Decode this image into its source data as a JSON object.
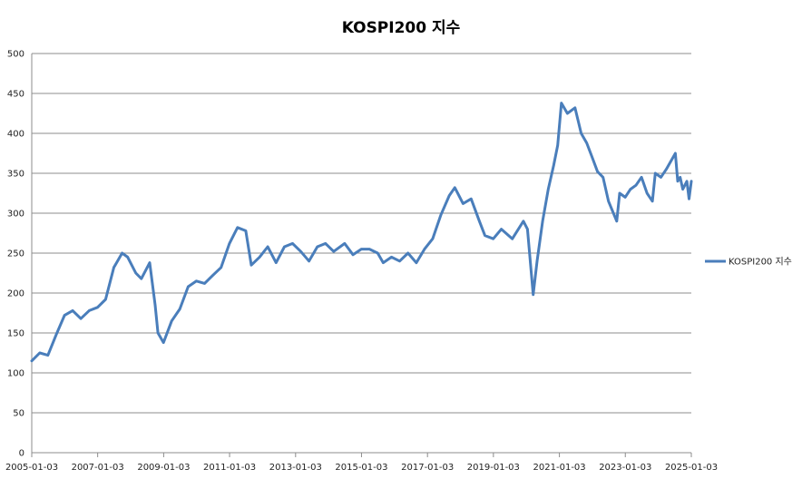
{
  "chart_data": {
    "type": "line",
    "title": "KOSPI200 지수",
    "xlabel": "",
    "ylabel": "",
    "ylim": [
      0,
      500
    ],
    "y_ticks": [
      0,
      50,
      100,
      150,
      200,
      250,
      300,
      350,
      400,
      450,
      500
    ],
    "x_range": [
      "2005-01-03",
      "2025-01-03"
    ],
    "x_ticks": [
      "2005-01-03",
      "2007-01-03",
      "2009-01-03",
      "2011-01-03",
      "2013-01-03",
      "2015-01-03",
      "2017-01-03",
      "2019-01-03",
      "2021-01-03",
      "2023-01-03",
      "2025-01-03"
    ],
    "grid": "horizontal",
    "legend_position": "right",
    "series": [
      {
        "name": "KOSPI200 지수",
        "color": "#4a7ebb",
        "x": [
          "2005-01-03",
          "2005-04-01",
          "2005-07-01",
          "2005-10-01",
          "2006-01-01",
          "2006-04-01",
          "2006-07-01",
          "2006-10-01",
          "2007-01-01",
          "2007-04-01",
          "2007-07-01",
          "2007-10-01",
          "2007-12-01",
          "2008-03-01",
          "2008-05-01",
          "2008-08-01",
          "2008-10-01",
          "2008-11-01",
          "2009-01-01",
          "2009-04-01",
          "2009-07-01",
          "2009-10-01",
          "2010-01-01",
          "2010-04-01",
          "2010-07-01",
          "2010-10-01",
          "2011-01-01",
          "2011-04-01",
          "2011-07-01",
          "2011-09-01",
          "2011-12-01",
          "2012-03-01",
          "2012-06-01",
          "2012-09-01",
          "2012-12-01",
          "2013-03-01",
          "2013-06-01",
          "2013-09-01",
          "2013-12-01",
          "2014-03-01",
          "2014-07-01",
          "2014-10-01",
          "2015-01-01",
          "2015-04-01",
          "2015-07-01",
          "2015-09-01",
          "2015-12-01",
          "2016-03-01",
          "2016-06-01",
          "2016-09-01",
          "2016-12-01",
          "2017-03-01",
          "2017-06-01",
          "2017-09-01",
          "2017-11-01",
          "2018-02-01",
          "2018-05-01",
          "2018-08-01",
          "2018-10-01",
          "2019-01-01",
          "2019-04-01",
          "2019-08-01",
          "2019-12-01",
          "2020-01-15",
          "2020-03-19",
          "2020-05-01",
          "2020-07-01",
          "2020-09-01",
          "2020-11-01",
          "2020-12-15",
          "2021-01-25",
          "2021-04-01",
          "2021-06-25",
          "2021-09-01",
          "2021-11-01",
          "2022-01-01",
          "2022-03-01",
          "2022-05-01",
          "2022-07-01",
          "2022-09-30",
          "2022-11-01",
          "2023-01-01",
          "2023-03-01",
          "2023-05-01",
          "2023-07-01",
          "2023-09-01",
          "2023-10-30",
          "2023-12-01",
          "2024-02-01",
          "2024-04-01",
          "2024-07-10",
          "2024-08-05",
          "2024-09-01",
          "2024-10-01",
          "2024-11-15",
          "2024-12-09",
          "2025-01-03"
        ],
        "values": [
          115,
          125,
          122,
          148,
          172,
          178,
          168,
          178,
          182,
          192,
          232,
          250,
          245,
          225,
          218,
          238,
          185,
          150,
          138,
          165,
          180,
          208,
          215,
          212,
          222,
          232,
          262,
          282,
          278,
          235,
          245,
          258,
          238,
          258,
          262,
          252,
          240,
          258,
          262,
          252,
          262,
          248,
          255,
          255,
          250,
          238,
          245,
          240,
          250,
          238,
          255,
          268,
          298,
          322,
          332,
          312,
          318,
          290,
          272,
          268,
          280,
          268,
          290,
          280,
          198,
          240,
          290,
          330,
          360,
          385,
          438,
          425,
          432,
          400,
          388,
          370,
          352,
          345,
          315,
          290,
          325,
          320,
          330,
          335,
          345,
          325,
          315,
          350,
          345,
          355,
          375,
          340,
          345,
          330,
          340,
          318,
          340
        ]
      }
    ]
  }
}
